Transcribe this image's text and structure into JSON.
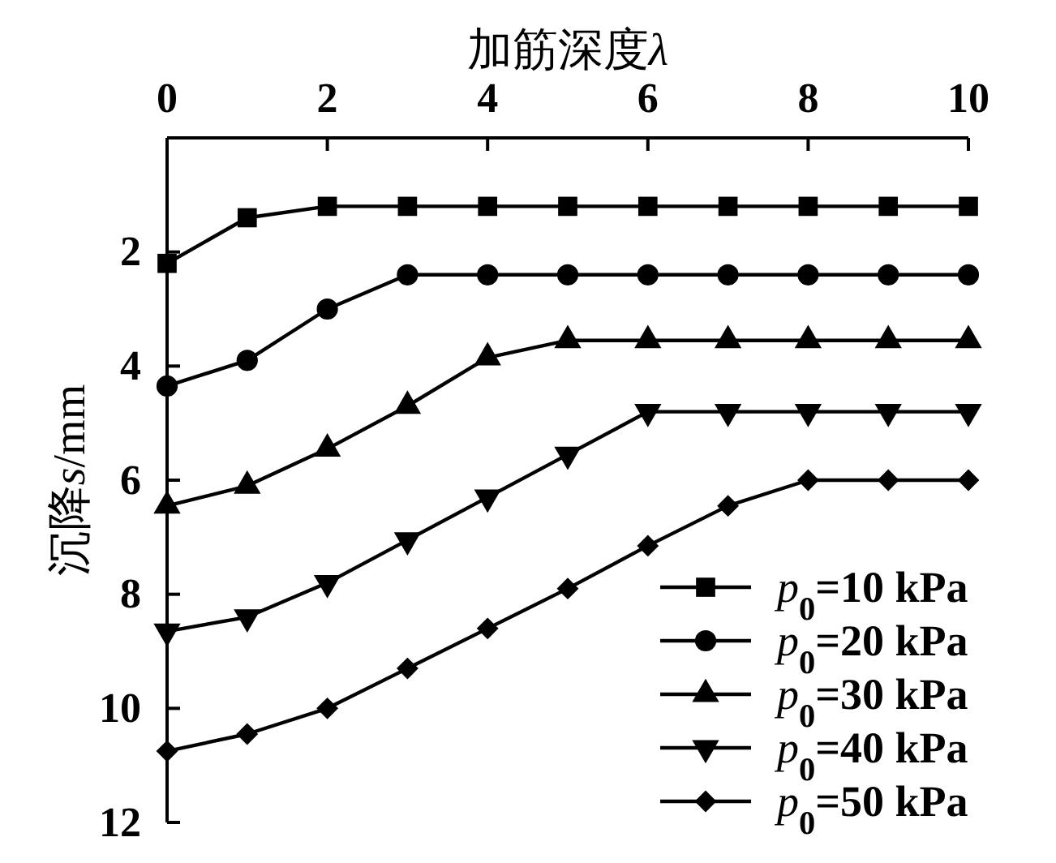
{
  "chart_data": {
    "type": "line",
    "xlabel": "加筋深度λ",
    "ylabel": "沉降s/mm",
    "x": [
      0,
      1,
      2,
      3,
      4,
      5,
      6,
      7,
      8,
      9,
      10
    ],
    "xlim": [
      0,
      10
    ],
    "xticks": [
      0,
      2,
      4,
      6,
      8,
      10
    ],
    "ylim": [
      12,
      0
    ],
    "yticks": [
      2,
      4,
      6,
      8,
      10,
      12
    ],
    "legend": "bottom right",
    "line_style": "solid",
    "series": [
      {
        "name": "p$_{0}$=10 kPa",
        "color": "#000000",
        "marker": "square",
        "values": [
          2.2,
          1.4,
          1.2,
          1.2,
          1.2,
          1.2,
          1.2,
          1.2,
          1.2,
          1.2,
          1.2
        ]
      },
      {
        "name": "p$_{0}$=20 kPa",
        "color": "#000000",
        "marker": "circle",
        "values": [
          4.35,
          3.9,
          3.0,
          2.4,
          2.4,
          2.4,
          2.4,
          2.4,
          2.4,
          2.4,
          2.4
        ]
      },
      {
        "name": "p$_{0}$=30 kPa",
        "color": "#000000",
        "marker": "triangle",
        "values": [
          6.45,
          6.1,
          5.45,
          4.7,
          3.85,
          3.55,
          3.55,
          3.55,
          3.55,
          3.55,
          3.55
        ]
      },
      {
        "name": "p$_{0}$=40 kPa",
        "color": "#000000",
        "marker": "triangle-down",
        "values": [
          8.65,
          8.4,
          7.8,
          7.05,
          6.3,
          5.55,
          4.8,
          4.8,
          4.8,
          4.8,
          4.8
        ]
      },
      {
        "name": "p$_{0}$=50 kPa",
        "color": "#000000",
        "marker": "diamond",
        "values": [
          10.75,
          10.45,
          10.0,
          9.3,
          8.6,
          7.9,
          7.15,
          6.45,
          6.0,
          6.0,
          6.0
        ]
      }
    ]
  }
}
